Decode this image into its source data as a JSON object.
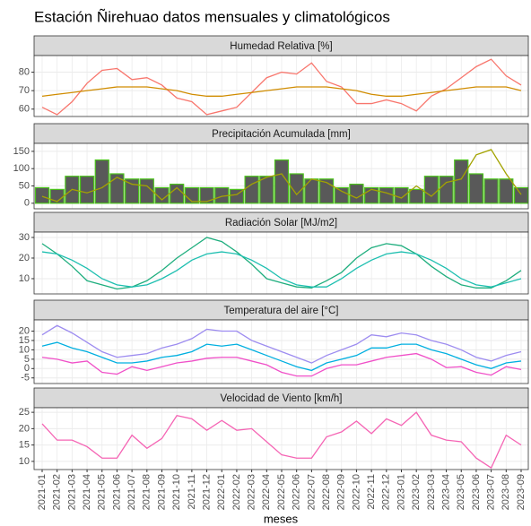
{
  "title": "Estación Ñirehuao datos mensuales y climatológicos",
  "xlabel": "meses",
  "categories": [
    "2021-01",
    "2021-02",
    "2021-03",
    "2021-04",
    "2021-05",
    "2021-06",
    "2021-07",
    "2021-08",
    "2021-09",
    "2021-10",
    "2021-11",
    "2021-12",
    "2022-01",
    "2022-02",
    "2022-03",
    "2022-04",
    "2022-05",
    "2022-06",
    "2022-07",
    "2022-08",
    "2022-09",
    "2022-10",
    "2022-11",
    "2022-12",
    "2023-01",
    "2023-02",
    "2023-03",
    "2023-04",
    "2023-05",
    "2023-06",
    "2023-07",
    "2023-08",
    "2023-09"
  ],
  "chart_data": [
    {
      "type": "line",
      "title": "Humedad Relativa [%]",
      "ylim": [
        56,
        89
      ],
      "yticks": [
        60,
        70,
        80
      ],
      "grid": true,
      "series": [
        {
          "color": "#f8766d",
          "values": [
            61,
            57,
            64,
            74,
            81,
            82,
            76,
            77,
            73,
            66,
            64,
            57,
            59,
            61,
            69,
            77,
            80,
            79,
            85,
            75,
            72,
            63,
            63,
            65,
            63,
            59,
            67,
            71,
            77,
            83,
            87,
            78,
            73
          ]
        },
        {
          "color": "#d08c00",
          "values": [
            67,
            68,
            69,
            70,
            71,
            72,
            72,
            72,
            71,
            70,
            68,
            67,
            67,
            68,
            69,
            70,
            71,
            72,
            72,
            72,
            71,
            70,
            68,
            67,
            67,
            68,
            69,
            70,
            71,
            72,
            72,
            72,
            70
          ]
        }
      ]
    },
    {
      "type": "bar",
      "title": "Precipitación Acumulada [mm]",
      "ylim": [
        -16,
        173
      ],
      "yticks": [
        0,
        50,
        100,
        150
      ],
      "grid": true,
      "series": [
        {
          "type": "bar",
          "color": "#595959",
          "edge": "#4cc41c",
          "values": [
            45,
            40,
            78,
            78,
            125,
            85,
            70,
            70,
            45,
            55,
            45,
            45,
            45,
            40,
            78,
            78,
            125,
            85,
            70,
            70,
            45,
            55,
            45,
            45,
            45,
            40,
            78,
            78,
            125,
            85,
            70,
            70,
            45
          ]
        },
        {
          "type": "line",
          "color": "#a3a300",
          "values": [
            20,
            5,
            40,
            30,
            45,
            75,
            55,
            50,
            10,
            45,
            5,
            5,
            20,
            25,
            55,
            75,
            85,
            25,
            70,
            60,
            35,
            15,
            40,
            30,
            15,
            50,
            20,
            60,
            70,
            140,
            155,
            85,
            25
          ]
        }
      ]
    },
    {
      "type": "line",
      "title": "Radiación Solar [MJ/m2]",
      "ylim": [
        2.6,
        32.6
      ],
      "yticks": [
        10,
        20,
        30
      ],
      "grid": true,
      "series": [
        {
          "color": "#1fae7e",
          "values": [
            27,
            22,
            16,
            9,
            7,
            5,
            6,
            9,
            14,
            20,
            25,
            30,
            28,
            23,
            17,
            10,
            8,
            6,
            5.5,
            9,
            13,
            20,
            25,
            27,
            26,
            22,
            16,
            11,
            7,
            5.5,
            5.5,
            9,
            14
          ]
        },
        {
          "color": "#1dbfb0",
          "values": [
            23,
            22,
            19,
            15,
            10,
            7,
            6,
            7,
            10,
            14,
            19,
            22,
            23,
            22,
            19,
            15,
            10,
            7,
            6,
            6,
            10,
            15,
            19,
            22,
            23,
            22,
            19,
            15,
            10,
            7,
            6,
            8,
            10
          ]
        }
      ]
    },
    {
      "type": "line",
      "title": "Temperatura del aire [°C]",
      "ylim": [
        -8,
        26
      ],
      "yticks": [
        -5,
        0,
        5,
        10,
        15,
        20
      ],
      "grid": true,
      "series": [
        {
          "color": "#9d8cf0",
          "values": [
            18,
            23,
            19,
            14,
            9,
            6,
            7,
            8,
            11,
            13,
            16,
            21,
            20,
            20,
            15,
            12,
            9,
            6,
            3,
            7,
            10,
            13,
            18,
            17,
            19,
            18,
            15,
            13,
            10,
            6,
            4,
            7,
            9
          ]
        },
        {
          "color": "#00afe0",
          "values": [
            12,
            14,
            11,
            9,
            6,
            3,
            3,
            4,
            6,
            7,
            9,
            13,
            12,
            13,
            10,
            7,
            4,
            1,
            -1,
            3,
            5,
            7,
            11,
            11,
            13,
            13,
            10,
            8,
            5,
            2,
            0,
            3,
            4
          ]
        },
        {
          "color": "#f050c8",
          "values": [
            6,
            5,
            3,
            4,
            -2,
            -3,
            1,
            -1,
            1,
            3,
            4,
            5.5,
            6,
            6,
            4,
            2,
            -2,
            -4,
            -4,
            0,
            2,
            2,
            4,
            6,
            7,
            8,
            5,
            0.5,
            1,
            -2,
            -3.5,
            1,
            -0.5
          ]
        }
      ]
    },
    {
      "type": "line",
      "title": "Velocidad de Viento [km/h]",
      "ylim": [
        7.5,
        26.4
      ],
      "yticks": [
        10,
        15,
        20,
        25
      ],
      "grid": true,
      "series": [
        {
          "color": "#f564b4",
          "values": [
            21.5,
            16.5,
            16.5,
            14.5,
            11,
            11,
            18,
            14,
            17,
            24,
            23,
            19.5,
            22.5,
            19.5,
            20,
            16,
            12,
            11,
            11,
            17.5,
            19,
            22.3,
            18.5,
            23,
            21,
            25,
            18,
            16.5,
            16,
            11,
            8,
            18,
            15
          ]
        }
      ]
    }
  ]
}
